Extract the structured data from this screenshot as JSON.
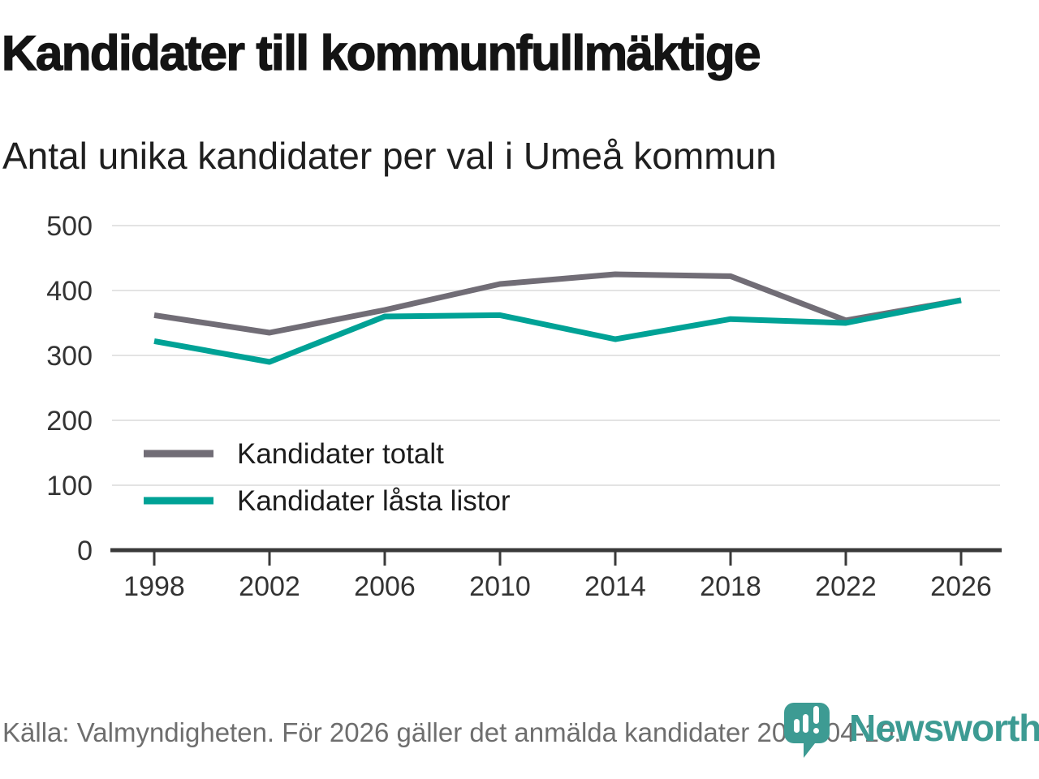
{
  "header": {
    "title": "Kandidater till kommunfullmäktige",
    "subtitle": "Antal unika kandidater per val i Umeå kommun"
  },
  "chart_data": {
    "type": "line",
    "categories": [
      "1998",
      "2002",
      "2006",
      "2010",
      "2014",
      "2018",
      "2022",
      "2026"
    ],
    "series": [
      {
        "name": "Kandidater totalt",
        "color": "#716d76",
        "values": [
          362,
          335,
          370,
          410,
          425,
          422,
          354,
          385
        ]
      },
      {
        "name": "Kandidater låsta listor",
        "color": "#00a296",
        "values": [
          322,
          290,
          360,
          362,
          325,
          356,
          350,
          385
        ]
      }
    ],
    "title": "Kandidater till kommunfullmäktige",
    "subtitle": "Antal unika kandidater per val i Umeå kommun",
    "xlabel": "",
    "ylabel": "",
    "ylim": [
      0,
      500
    ],
    "yticks": [
      0,
      100,
      200,
      300,
      400,
      500
    ],
    "grid": true,
    "legend_position": "inside-bottom-left"
  },
  "footer": {
    "source": "Källa: Valmyndigheten. För 2026 gäller det anmälda kandidater 2026-04-10.",
    "brand": "Newsworthy",
    "brand_color": "#3d9b93"
  },
  "colors": {
    "axis": "#3a3a3a",
    "gridline": "#e3e3e3",
    "tick_label": "#333333",
    "legend_text": "#1c1c1c"
  }
}
